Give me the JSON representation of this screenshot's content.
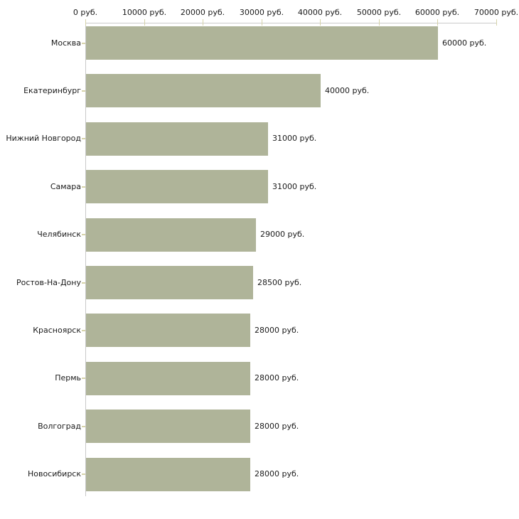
{
  "chart_data": {
    "type": "bar",
    "orientation": "horizontal",
    "title": "",
    "xlabel": "",
    "ylabel": "",
    "xlim": [
      0,
      70000
    ],
    "x_tick_labels": [
      "0 руб.",
      "10000 руб.",
      "20000 руб.",
      "30000 руб.",
      "40000 руб.",
      "50000 руб.",
      "60000 руб.",
      "70000 руб."
    ],
    "categories": [
      "Москва",
      "Екатеринбург",
      "Нижний Новгород",
      "Самара",
      "Челябинск",
      "Ростов-На-Дону",
      "Красноярск",
      "Пермь",
      "Волгоград",
      "Новосибирск"
    ],
    "values": [
      60000,
      40000,
      31000,
      31000,
      29000,
      28500,
      28000,
      28000,
      28000,
      28000
    ],
    "value_labels": [
      "60000 руб.",
      "40000 руб.",
      "31000 руб.",
      "31000 руб.",
      "29000 руб.",
      "28500 руб.",
      "28000 руб.",
      "28000 руб.",
      "28000 руб.",
      "28000 руб."
    ],
    "unit": "руб.",
    "grid": false,
    "legend": false,
    "axis_position": "top",
    "colors": {
      "bar": "#afb499",
      "axis_line": "#c9c9c9",
      "tick_mark": "#d6d3a9",
      "text": "#1a1a1a",
      "background": "#ffffff"
    }
  }
}
